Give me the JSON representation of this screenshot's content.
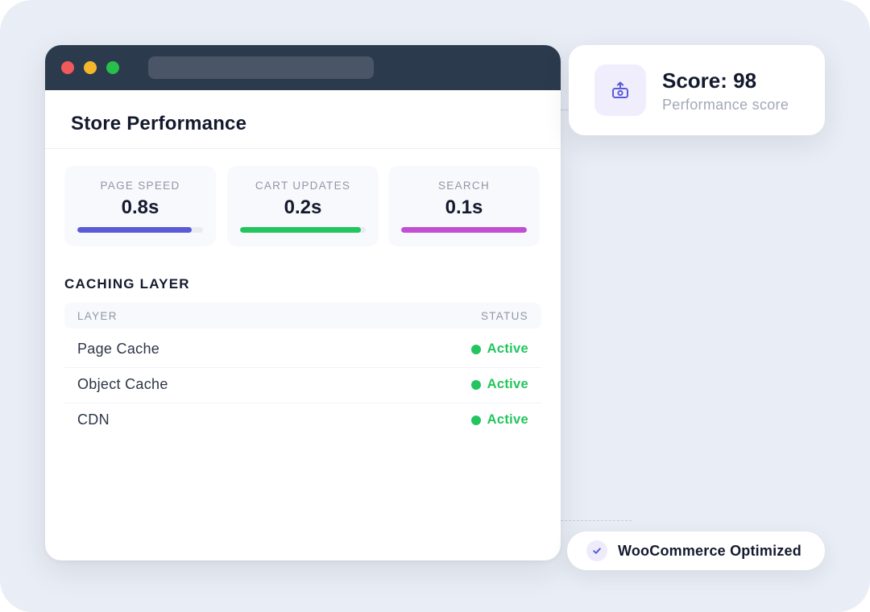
{
  "window": {
    "controls": [
      "close",
      "minimize",
      "maximize"
    ],
    "control_colors": {
      "close": "#f05a5a",
      "minimize": "#f4b72c",
      "maximize": "#26c04a"
    },
    "page_title": "Store Performance"
  },
  "metrics": [
    {
      "label": "PAGE SPEED",
      "value": "0.8s",
      "progress": 0.91,
      "color": "#5b5bd6"
    },
    {
      "label": "CART UPDATES",
      "value": "0.2s",
      "progress": 0.96,
      "color": "#22c55e"
    },
    {
      "label": "SEARCH",
      "value": "0.1s",
      "progress": 1.0,
      "color": "#c04fd1"
    }
  ],
  "caching": {
    "title": "CACHING LAYER",
    "headers": {
      "layer": "LAYER",
      "status": "STATUS"
    },
    "rows": [
      {
        "name": "Page Cache",
        "status": "Active"
      },
      {
        "name": "Object Cache",
        "status": "Active"
      },
      {
        "name": "CDN",
        "status": "Active"
      }
    ],
    "status_color": "#22c55e"
  },
  "score_card": {
    "icon": "camera-upload-icon",
    "title": "Score: 98",
    "subtitle": "Performance score",
    "icon_color": "#5b5bd6"
  },
  "badge": {
    "icon": "check-icon",
    "label": "WooCommerce Optimized",
    "icon_color": "#5b5bd6"
  }
}
